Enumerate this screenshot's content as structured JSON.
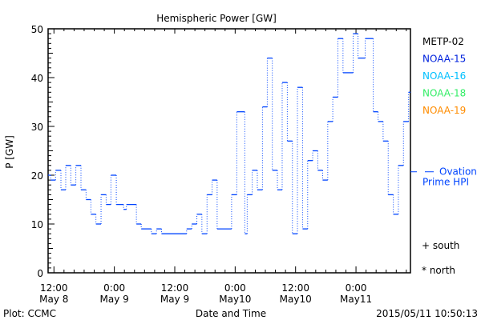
{
  "chart_data": {
    "type": "line",
    "title": "Hemispheric Power [GW]",
    "ylabel": "P [GW]",
    "xlabel": "Date and Time",
    "x_units": "hours since May 8 00:00",
    "xlim": [
      10.84,
      82.82
    ],
    "ylim": [
      0,
      50
    ],
    "y_ticks": [
      0,
      10,
      20,
      30,
      40,
      50
    ],
    "y_tick_labels": [
      "0",
      "10",
      "20",
      "30",
      "40",
      "50"
    ],
    "x_ticks": [
      12,
      24,
      36,
      48,
      60,
      72
    ],
    "x_tick_labels": [
      [
        "12:00",
        "May 8"
      ],
      [
        "0:00",
        "May 9"
      ],
      [
        "12:00",
        "May 9"
      ],
      [
        "0:00",
        "May10"
      ],
      [
        "12:00",
        "May10"
      ],
      [
        "0:00",
        "May11"
      ]
    ],
    "legend": [
      {
        "name": "METP-02",
        "color": "#000000"
      },
      {
        "name": "NOAA-15",
        "color": "#0022dd"
      },
      {
        "name": "NOAA-16",
        "color": "#00c0ff"
      },
      {
        "name": "NOAA-18",
        "color": "#33ee66"
      },
      {
        "name": "NOAA-19",
        "color": "#ff8c00"
      }
    ],
    "legend_position": "right",
    "series": [
      {
        "name": "NOAA-15",
        "color": "#0044ff",
        "step_starts": [
          10.84,
          11.36,
          12.32,
          13.39,
          14.34,
          15.35,
          16.35,
          17.37,
          18.38,
          19.34,
          20.34,
          21.36,
          22.37,
          23.32,
          24.39,
          25.83,
          26.4,
          28.38,
          29.34,
          31.35,
          32.37,
          33.37,
          38.36,
          39.38,
          40.39,
          41.39,
          42.41,
          43.42,
          44.42,
          47.29,
          48.32,
          49.91,
          50.39,
          51.39,
          52.4,
          53.42,
          54.38,
          55.38,
          56.39,
          57.34,
          58.36,
          59.37,
          60.37,
          61.39,
          62.4,
          63.4,
          64.42,
          65.38,
          66.39,
          67.39,
          68.41,
          69.42,
          71.44,
          72.4,
          73.83,
          75.43,
          76.39,
          77.39,
          78.4,
          79.42,
          80.42,
          81.43,
          82.45
        ],
        "values": [
          20,
          19,
          21,
          17,
          22,
          18,
          22,
          17,
          15,
          12,
          10,
          16,
          14,
          20,
          14,
          13,
          14,
          10,
          9,
          8,
          9,
          8,
          9,
          10,
          12,
          8,
          16,
          19,
          9,
          16,
          33,
          8,
          16,
          21,
          17,
          34,
          44,
          21,
          17,
          39,
          27,
          8,
          38,
          9,
          23,
          25,
          21,
          19,
          31,
          36,
          48,
          41,
          49,
          44,
          48,
          33,
          31,
          27,
          16,
          12,
          22,
          31,
          37
        ]
      }
    ],
    "ovation": {
      "value": 20.7,
      "label_line1": "Ovation",
      "label_line2": "Prime HPI",
      "color": "#0044ff"
    },
    "markers": {
      "south": "+ south",
      "north": "* north"
    },
    "footer": {
      "left": "Plot: CCMC",
      "right": "2015/05/11 10:50:13"
    }
  }
}
